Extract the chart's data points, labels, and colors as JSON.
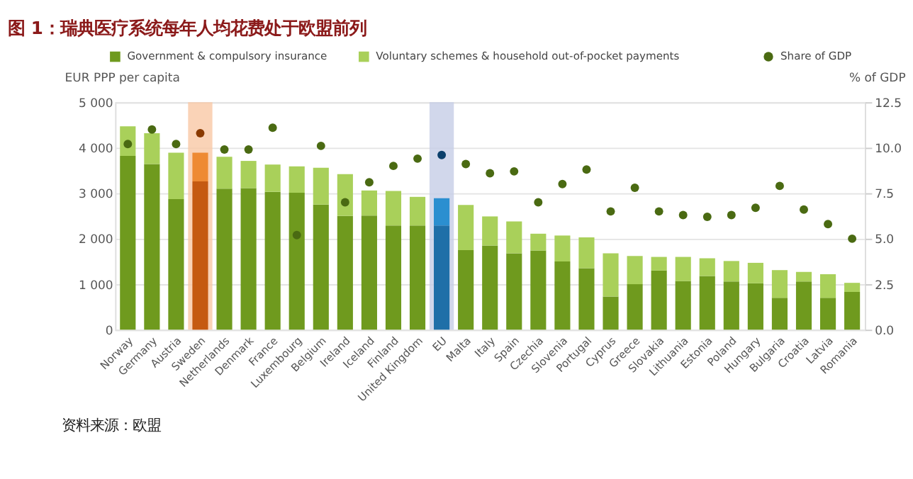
{
  "chart_data": {
    "type": "bar",
    "title": "图 1：瑞典医疗系统每年人均花费处于欧盟前列",
    "categories": [
      "Norway",
      "Germany",
      "Austria",
      "Sweden",
      "Netherlands",
      "Denmark",
      "France",
      "Luxembourg",
      "Belgium",
      "Ireland",
      "Iceland",
      "Finland",
      "United Kingdom",
      "EU",
      "Malta",
      "Italy",
      "Spain",
      "Czechia",
      "Slovenia",
      "Portugal",
      "Cyprus",
      "Greece",
      "Slovakia",
      "Lithuania",
      "Estonia",
      "Poland",
      "Hungary",
      "Bulgaria",
      "Croatia",
      "Latvia",
      "Romania"
    ],
    "stacked": true,
    "series": [
      {
        "name": "Government & compulsory insurance",
        "color": "#6f9a1e",
        "colors": [
          "#6f9a1e",
          "#6f9a1e",
          "#6f9a1e",
          "#c55a11",
          "#6f9a1e",
          "#6f9a1e",
          "#6f9a1e",
          "#6f9a1e",
          "#6f9a1e",
          "#6f9a1e",
          "#6f9a1e",
          "#6f9a1e",
          "#6f9a1e",
          "#1f6fa8",
          "#6f9a1e",
          "#6f9a1e",
          "#6f9a1e",
          "#6f9a1e",
          "#6f9a1e",
          "#6f9a1e",
          "#6f9a1e",
          "#6f9a1e",
          "#6f9a1e",
          "#6f9a1e",
          "#6f9a1e",
          "#6f9a1e",
          "#6f9a1e",
          "#6f9a1e",
          "#6f9a1e",
          "#6f9a1e",
          "#6f9a1e"
        ],
        "values": [
          3820,
          3640,
          2870,
          3260,
          3100,
          3110,
          3030,
          3010,
          2750,
          2500,
          2510,
          2290,
          2290,
          2290,
          1750,
          1850,
          1680,
          1740,
          1500,
          1350,
          730,
          1000,
          1300,
          1070,
          1180,
          1060,
          1020,
          700,
          1060,
          700,
          830
        ]
      },
      {
        "name": "Voluntary schemes & household out-of-pocket payments",
        "color": "#a9d05a",
        "colors": [
          "#a9d05a",
          "#a9d05a",
          "#a9d05a",
          "#ee8a33",
          "#a9d05a",
          "#a9d05a",
          "#a9d05a",
          "#a9d05a",
          "#a9d05a",
          "#a9d05a",
          "#a9d05a",
          "#a9d05a",
          "#a9d05a",
          "#2b8fd0",
          "#a9d05a",
          "#a9d05a",
          "#a9d05a",
          "#a9d05a",
          "#a9d05a",
          "#a9d05a",
          "#a9d05a",
          "#a9d05a",
          "#a9d05a",
          "#a9d05a",
          "#a9d05a",
          "#a9d05a",
          "#a9d05a",
          "#a9d05a",
          "#a9d05a",
          "#a9d05a",
          "#a9d05a"
        ],
        "values": [
          650,
          680,
          1020,
          630,
          700,
          600,
          600,
          580,
          810,
          920,
          550,
          760,
          630,
          600,
          990,
          640,
          700,
          370,
          570,
          680,
          950,
          620,
          300,
          530,
          390,
          450,
          450,
          610,
          210,
          520,
          200
        ]
      },
      {
        "name": "Share of GDP",
        "type": "scatter",
        "axis": "y2",
        "marker": "circle",
        "color": "#4a6a12",
        "colors": [
          "#4a6a12",
          "#4a6a12",
          "#4a6a12",
          "#8a3a00",
          "#4a6a12",
          "#4a6a12",
          "#4a6a12",
          "#4a6a12",
          "#4a6a12",
          "#4a6a12",
          "#4a6a12",
          "#4a6a12",
          "#4a6a12",
          "#0b3f6b",
          "#4a6a12",
          "#4a6a12",
          "#4a6a12",
          "#4a6a12",
          "#4a6a12",
          "#4a6a12",
          "#4a6a12",
          "#4a6a12",
          "#4a6a12",
          "#4a6a12",
          "#4a6a12",
          "#4a6a12",
          "#4a6a12",
          "#4a6a12",
          "#4a6a12",
          "#4a6a12",
          "#4a6a12"
        ],
        "values": [
          10.2,
          11.0,
          10.2,
          10.8,
          9.9,
          9.9,
          11.1,
          5.2,
          10.1,
          7.0,
          8.1,
          9.0,
          9.4,
          9.6,
          9.1,
          8.6,
          8.7,
          7.0,
          8.0,
          8.8,
          6.5,
          7.8,
          6.5,
          6.3,
          6.2,
          6.3,
          6.7,
          7.9,
          6.6,
          5.8,
          5.0
        ]
      }
    ],
    "ylabel": "EUR PPP per capita",
    "y2label": "% of GDP",
    "ylim": [
      0,
      5000
    ],
    "yticks": [
      {
        "value": 0,
        "label": "0"
      },
      {
        "value": 1000,
        "label": "1 000"
      },
      {
        "value": 2000,
        "label": "2 000"
      },
      {
        "value": 3000,
        "label": "3 000"
      },
      {
        "value": 4000,
        "label": "4 000"
      },
      {
        "value": 5000,
        "label": "5 000"
      }
    ],
    "y2lim": [
      0,
      12.5
    ],
    "y2ticks": [
      {
        "value": 0,
        "label": "0.0"
      },
      2.5,
      {
        "value": 5,
        "label": "5.0"
      },
      7.5,
      {
        "value": 10,
        "label": "10.0"
      },
      12.5
    ],
    "bands": [
      {
        "axis": "x",
        "from": "Sweden",
        "to": "Sweden",
        "color": "#f9c8a5"
      },
      {
        "axis": "x",
        "from": "EU",
        "to": "EU",
        "color": "#c5cde6"
      }
    ],
    "grid": "y",
    "legend": "top",
    "annotations": [
      "资料来源：欧盟"
    ]
  }
}
